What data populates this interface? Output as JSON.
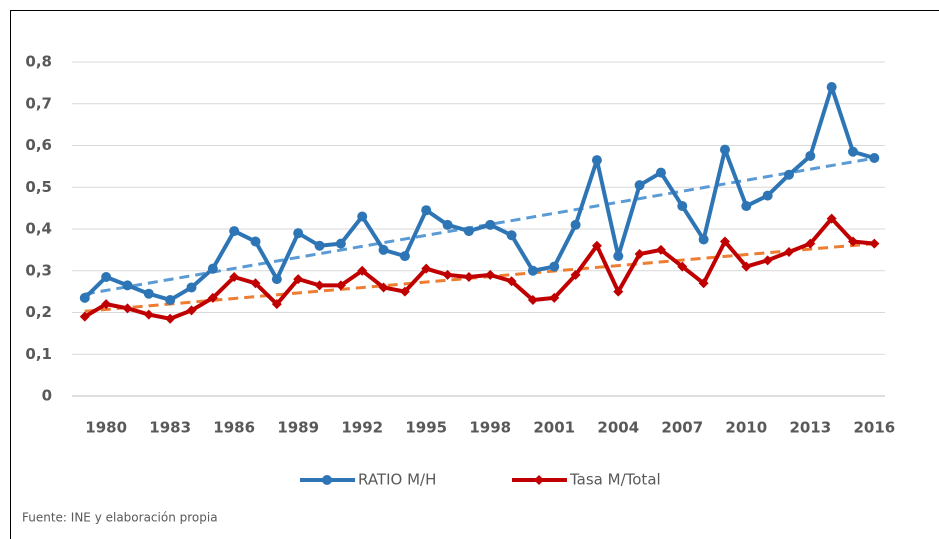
{
  "chart_data": {
    "type": "line",
    "x": [
      1979,
      1980,
      1981,
      1982,
      1983,
      1984,
      1985,
      1986,
      1987,
      1988,
      1989,
      1990,
      1991,
      1992,
      1993,
      1994,
      1995,
      1996,
      1997,
      1998,
      1999,
      2000,
      2001,
      2002,
      2003,
      2004,
      2005,
      2006,
      2007,
      2008,
      2009,
      2010,
      2011,
      2012,
      2013,
      2014,
      2015,
      2016
    ],
    "xlim": [
      1978.4,
      2016.5
    ],
    "xticks": [
      1980,
      1983,
      1986,
      1989,
      1992,
      1995,
      1998,
      2001,
      2004,
      2007,
      2010,
      2013,
      2016
    ],
    "ylim": [
      0,
      0.8
    ],
    "yticks": [
      0,
      {
        "value": 0.1,
        "label": "0,1"
      },
      {
        "value": 0.2,
        "label": "0,2"
      },
      {
        "value": 0.3,
        "label": "0,3"
      },
      {
        "value": 0.4,
        "label": "0,4"
      },
      {
        "value": 0.5,
        "label": "0,5"
      },
      {
        "value": 0.6,
        "label": "0,6"
      },
      {
        "value": 0.7,
        "label": "0,7"
      },
      {
        "value": 0.8,
        "label": "0,8"
      }
    ],
    "grid": true,
    "legend": "bottom",
    "trendline": true,
    "series": [
      {
        "name": "RATIO M/H",
        "color": "#2e75b6",
        "trend_color": "#5b9bd5",
        "marker": "circle",
        "values": [
          0.235,
          0.285,
          0.265,
          0.245,
          0.23,
          0.26,
          0.305,
          0.395,
          0.37,
          0.28,
          0.39,
          0.36,
          0.365,
          0.43,
          0.35,
          0.335,
          0.445,
          0.41,
          0.395,
          0.41,
          0.385,
          0.3,
          0.31,
          0.41,
          0.565,
          0.335,
          0.505,
          0.535,
          0.455,
          0.375,
          0.59,
          0.455,
          0.48,
          0.53,
          0.575,
          0.74,
          0.585,
          0.57
        ]
      },
      {
        "name": "Tasa M/Total",
        "color": "#c00000",
        "trend_color": "#ed7d31",
        "marker": "diamond",
        "values": [
          0.19,
          0.22,
          0.21,
          0.195,
          0.185,
          0.205,
          0.235,
          0.285,
          0.27,
          0.22,
          0.28,
          0.265,
          0.265,
          0.3,
          0.26,
          0.25,
          0.305,
          0.29,
          0.285,
          0.29,
          0.275,
          0.23,
          0.235,
          0.29,
          0.36,
          0.25,
          0.34,
          0.35,
          0.31,
          0.27,
          0.37,
          0.31,
          0.325,
          0.345,
          0.365,
          0.425,
          0.37,
          0.365
        ]
      }
    ],
    "source": "Fuente:  INE y elaboración propia"
  }
}
